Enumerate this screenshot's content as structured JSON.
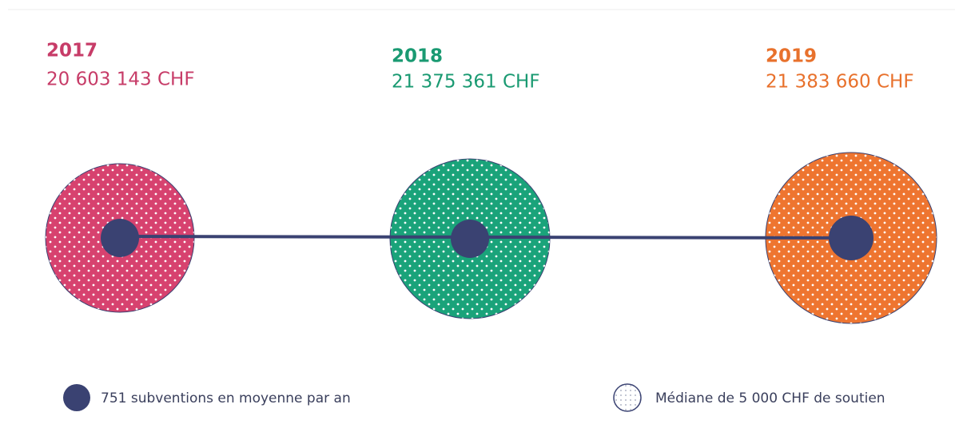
{
  "items": [
    {
      "year": "2017",
      "amount": "20 603 143 CHF"
    },
    {
      "year": "2018",
      "amount": "21 375 361 CHF"
    },
    {
      "year": "2019",
      "amount": "21 383 660 CHF"
    }
  ],
  "legend": {
    "count": "751 subventions en moyenne par an",
    "median": "Médiane de 5 000 CHF de soutien"
  }
}
